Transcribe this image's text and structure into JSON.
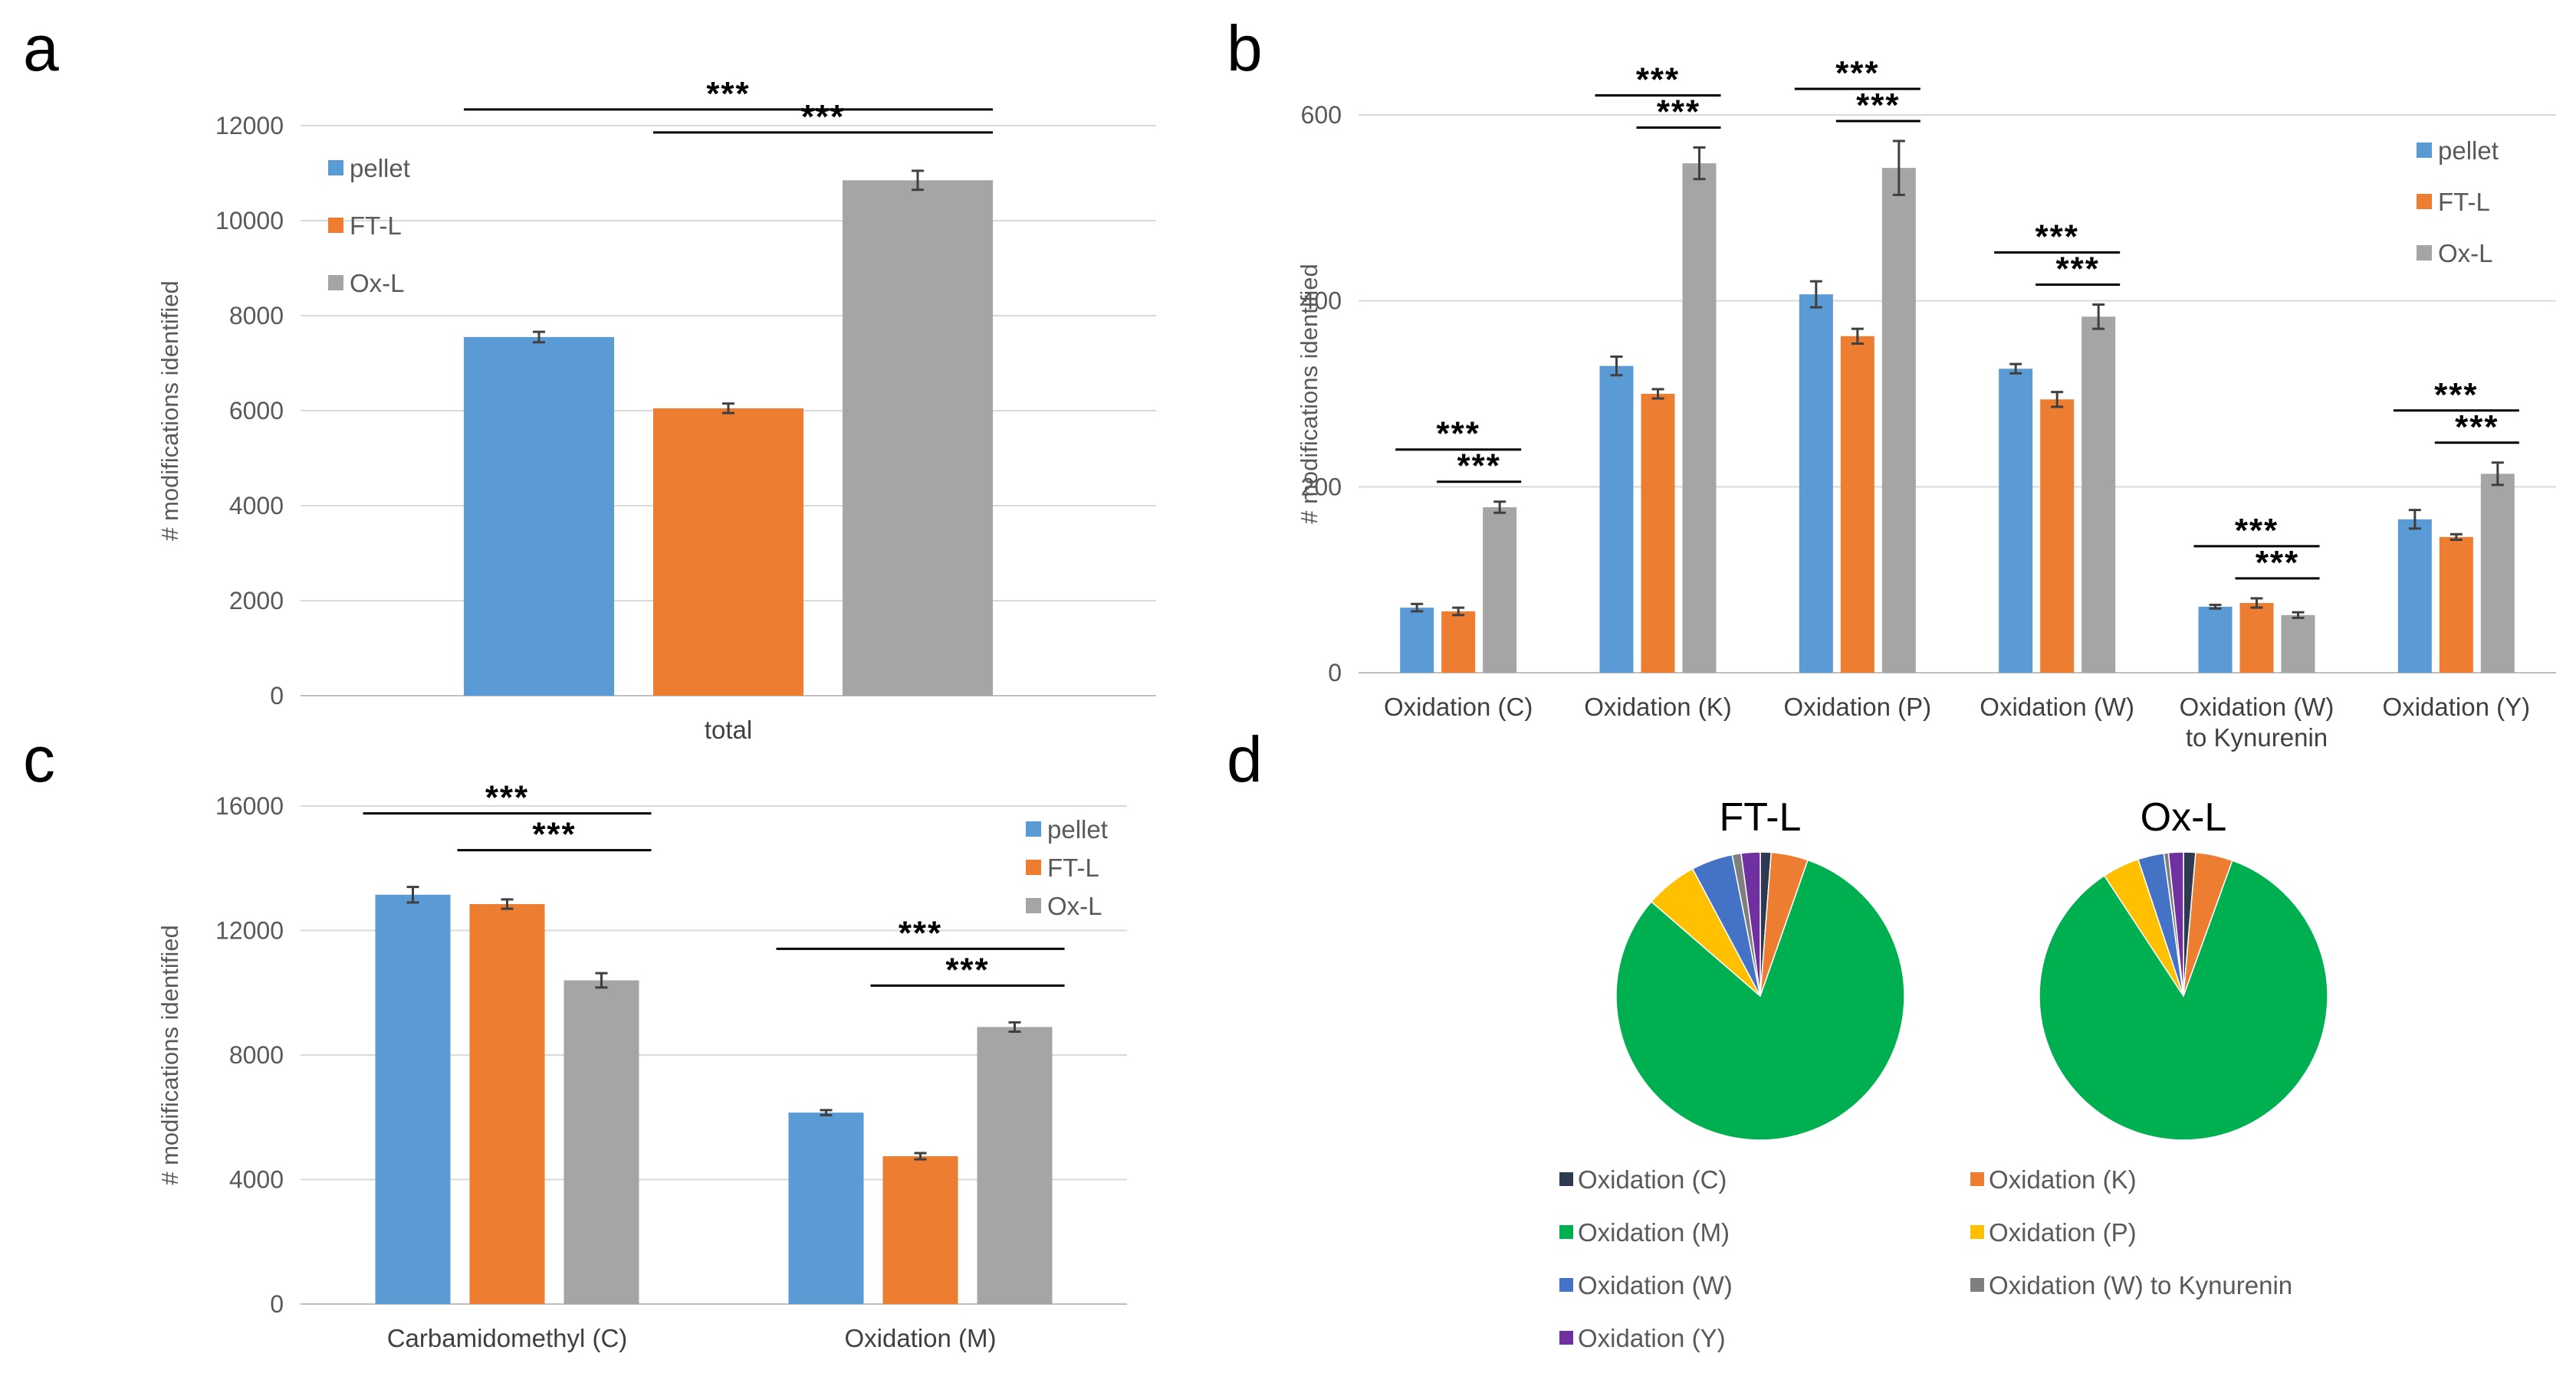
{
  "colors": {
    "pellet": "#5b9bd5",
    "FT-L": "#ed7d31",
    "Ox-L": "#a5a5a5",
    "Oxidation (C)": "#2e3a4f",
    "Oxidation (K)": "#ed7d31",
    "Oxidation (M)": "#00b050",
    "Oxidation (P)": "#ffc000",
    "Oxidation (W)": "#4472c4",
    "Oxidation (W) to Kynurenin": "#7f7f7f",
    "Oxidation (Y)": "#7030a0"
  },
  "significance_label": "***",
  "chart_data": [
    {
      "panel": "a",
      "type": "bar",
      "ylabel": "# modifications identified",
      "ylim": [
        0,
        12000
      ],
      "yticks": [
        0,
        2000,
        4000,
        6000,
        8000,
        10000,
        12000
      ],
      "categories": [
        "total"
      ],
      "legend": [
        "pellet",
        "FT-L",
        "Ox-L"
      ],
      "legend_position": "top-left",
      "series": [
        {
          "name": "pellet",
          "values": [
            7550
          ],
          "errors": [
            110
          ]
        },
        {
          "name": "FT-L",
          "values": [
            6050
          ],
          "errors": [
            100
          ]
        },
        {
          "name": "Ox-L",
          "values": [
            10850
          ],
          "errors": [
            200
          ]
        }
      ],
      "significance": [
        {
          "category": 0,
          "from": "pellet",
          "to": "Ox-L",
          "level": 0
        },
        {
          "category": 0,
          "from": "FT-L",
          "to": "Ox-L",
          "level": 1
        }
      ]
    },
    {
      "panel": "b",
      "type": "bar",
      "ylabel": "# modifications identified",
      "ylim": [
        0,
        600
      ],
      "yticks": [
        0,
        200,
        400,
        600
      ],
      "categories": [
        "Oxidation (C)",
        "Oxidation (K)",
        "Oxidation (P)",
        "Oxidation (W)",
        "Oxidation (W) to Kynurenin",
        "Oxidation (Y)"
      ],
      "category_lines": [
        [
          "Oxidation (C)"
        ],
        [
          "Oxidation (K)"
        ],
        [
          "Oxidation (P)"
        ],
        [
          "Oxidation (W)"
        ],
        [
          "Oxidation (W)",
          "to Kynurenin"
        ],
        [
          "Oxidation (Y)"
        ]
      ],
      "legend": [
        "pellet",
        "FT-L",
        "Ox-L"
      ],
      "legend_position": "top-right",
      "series": [
        {
          "name": "pellet",
          "values": [
            70,
            330,
            407,
            327,
            71,
            165
          ],
          "errors": [
            4,
            10,
            14,
            5,
            2,
            10
          ]
        },
        {
          "name": "FT-L",
          "values": [
            66,
            300,
            362,
            294,
            75,
            146
          ],
          "errors": [
            4,
            5,
            8,
            8,
            5,
            3
          ]
        },
        {
          "name": "Ox-L",
          "values": [
            178,
            548,
            543,
            383,
            62,
            214
          ],
          "errors": [
            6,
            17,
            29,
            13,
            3,
            12
          ]
        }
      ],
      "significance": [
        {
          "category": 0,
          "from": "pellet",
          "to": "Ox-L",
          "level": 0
        },
        {
          "category": 0,
          "from": "FT-L",
          "to": "Ox-L",
          "level": 1
        },
        {
          "category": 1,
          "from": "pellet",
          "to": "Ox-L",
          "level": 0
        },
        {
          "category": 1,
          "from": "FT-L",
          "to": "Ox-L",
          "level": 1
        },
        {
          "category": 2,
          "from": "pellet",
          "to": "Ox-L",
          "level": 0
        },
        {
          "category": 2,
          "from": "FT-L",
          "to": "Ox-L",
          "level": 1
        },
        {
          "category": 3,
          "from": "pellet",
          "to": "Ox-L",
          "level": 0
        },
        {
          "category": 3,
          "from": "FT-L",
          "to": "Ox-L",
          "level": 1
        },
        {
          "category": 4,
          "from": "pellet",
          "to": "Ox-L",
          "level": 0
        },
        {
          "category": 4,
          "from": "FT-L",
          "to": "Ox-L",
          "level": 1
        },
        {
          "category": 5,
          "from": "pellet",
          "to": "Ox-L",
          "level": 0
        },
        {
          "category": 5,
          "from": "FT-L",
          "to": "Ox-L",
          "level": 1
        }
      ]
    },
    {
      "panel": "c",
      "type": "bar",
      "ylabel": "# modifications identified",
      "ylim": [
        0,
        16000
      ],
      "yticks": [
        0,
        4000,
        8000,
        12000,
        16000
      ],
      "categories": [
        "Carbamidomethyl (C)",
        "Oxidation (M)"
      ],
      "legend": [
        "pellet",
        "FT-L",
        "Ox-L"
      ],
      "legend_position": "top-right",
      "series": [
        {
          "name": "pellet",
          "values": [
            13150,
            6150
          ],
          "errors": [
            250,
            80
          ]
        },
        {
          "name": "FT-L",
          "values": [
            12850,
            4750
          ],
          "errors": [
            150,
            100
          ]
        },
        {
          "name": "Ox-L",
          "values": [
            10400,
            8900
          ],
          "errors": [
            230,
            150
          ]
        }
      ],
      "significance": [
        {
          "category": 0,
          "from": "pellet",
          "to": "Ox-L",
          "level": 0
        },
        {
          "category": 0,
          "from": "FT-L",
          "to": "Ox-L",
          "level": 1
        },
        {
          "category": 1,
          "from": "pellet",
          "to": "Ox-L",
          "level": 0
        },
        {
          "category": 1,
          "from": "FT-L",
          "to": "Ox-L",
          "level": 1
        }
      ]
    },
    {
      "panel": "d",
      "type": "pie",
      "pies": [
        {
          "title": "FT-L",
          "slices": [
            {
              "label": "Oxidation (C)",
              "value": 1.2
            },
            {
              "label": "Oxidation (K)",
              "value": 4.1
            },
            {
              "label": "Oxidation (M)",
              "value": 80.2
            },
            {
              "label": "Oxidation (P)",
              "value": 5.8
            },
            {
              "label": "Oxidation (W)",
              "value": 4.6
            },
            {
              "label": "Oxidation (W) to Kynurenin",
              "value": 1.0
            },
            {
              "label": "Oxidation (Y)",
              "value": 2.1
            }
          ]
        },
        {
          "title": "Ox-L",
          "slices": [
            {
              "label": "Oxidation (C)",
              "value": 1.3
            },
            {
              "label": "Oxidation (K)",
              "value": 4.0
            },
            {
              "label": "Oxidation (M)",
              "value": 82.0
            },
            {
              "label": "Oxidation (P)",
              "value": 4.0
            },
            {
              "label": "Oxidation (W)",
              "value": 2.8
            },
            {
              "label": "Oxidation (W) to Kynurenin",
              "value": 0.5
            },
            {
              "label": "Oxidation (Y)",
              "value": 1.6
            }
          ]
        }
      ],
      "legend": [
        "Oxidation (C)",
        "Oxidation (K)",
        "Oxidation (M)",
        "Oxidation (P)",
        "Oxidation (W)",
        "Oxidation (W) to Kynurenin",
        "Oxidation (Y)"
      ],
      "legend_position": "bottom"
    }
  ],
  "panels": {
    "a": {
      "letter": "a"
    },
    "b": {
      "letter": "b"
    },
    "c": {
      "letter": "c"
    },
    "d": {
      "letter": "d"
    }
  }
}
